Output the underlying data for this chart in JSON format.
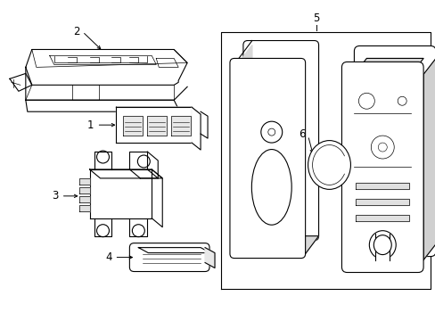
{
  "background_color": "#ffffff",
  "line_color": "#000000",
  "lw": 0.8,
  "tlw": 0.5,
  "fig_w": 4.89,
  "fig_h": 3.6,
  "dpi": 100,
  "components": {
    "label_fontsize": 8.5
  }
}
